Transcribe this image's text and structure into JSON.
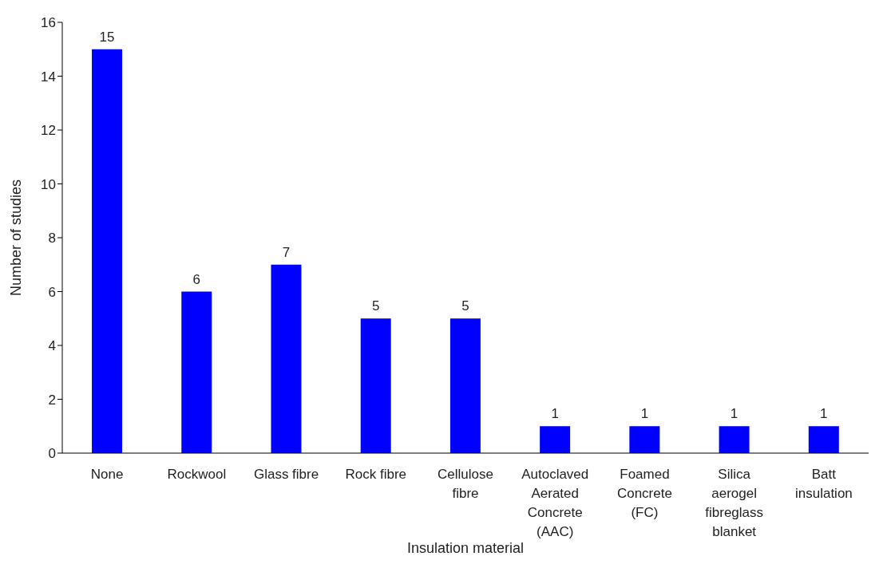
{
  "chart_data": {
    "type": "bar",
    "xlabel": "Insulation material",
    "ylabel": "Number of studies",
    "categories": [
      "None",
      "Rockwool",
      "Glass fibre",
      "Rock fibre",
      "Cellulose fibre",
      "Autoclaved Aerated Concrete (AAC)",
      "Foamed Concrete (FC)",
      "Silica aerogel fibreglass blanket",
      "Batt insulation"
    ],
    "values": [
      15,
      6,
      7,
      5,
      5,
      1,
      1,
      1,
      1
    ],
    "color": "#0000ff",
    "ylim": [
      0,
      16
    ],
    "yticks": [
      0,
      2,
      4,
      6,
      8,
      10,
      12,
      14,
      16
    ],
    "grid": false,
    "data_labels": true
  }
}
